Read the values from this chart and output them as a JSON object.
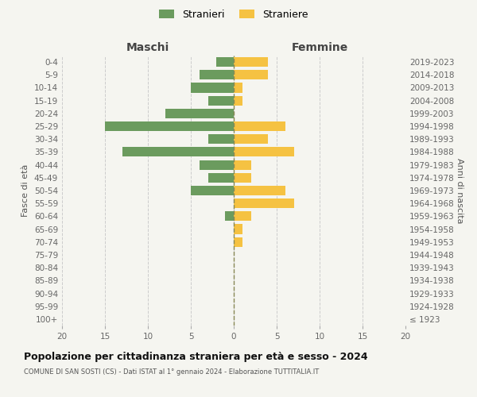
{
  "age_groups": [
    "100+",
    "95-99",
    "90-94",
    "85-89",
    "80-84",
    "75-79",
    "70-74",
    "65-69",
    "60-64",
    "55-59",
    "50-54",
    "45-49",
    "40-44",
    "35-39",
    "30-34",
    "25-29",
    "20-24",
    "15-19",
    "10-14",
    "5-9",
    "0-4"
  ],
  "birth_years": [
    "≤ 1923",
    "1924-1928",
    "1929-1933",
    "1934-1938",
    "1939-1943",
    "1944-1948",
    "1949-1953",
    "1954-1958",
    "1959-1963",
    "1964-1968",
    "1969-1973",
    "1974-1978",
    "1979-1983",
    "1984-1988",
    "1989-1993",
    "1994-1998",
    "1999-2003",
    "2004-2008",
    "2009-2013",
    "2014-2018",
    "2019-2023"
  ],
  "males": [
    0,
    0,
    0,
    0,
    0,
    0,
    0,
    0,
    1,
    0,
    5,
    3,
    4,
    13,
    3,
    15,
    8,
    3,
    5,
    4,
    2
  ],
  "females": [
    0,
    0,
    0,
    0,
    0,
    0,
    1,
    1,
    2,
    7,
    6,
    2,
    2,
    7,
    4,
    6,
    0,
    1,
    1,
    4,
    4
  ],
  "male_color": "#6B9B5E",
  "female_color": "#F5C242",
  "background_color": "#F5F5F0",
  "grid_color": "#CCCCCC",
  "title": "Popolazione per cittadinanza straniera per età e sesso - 2024",
  "subtitle": "COMUNE DI SAN SOSTI (CS) - Dati ISTAT al 1° gennaio 2024 - Elaborazione TUTTITALIA.IT",
  "label_maschi": "Maschi",
  "label_femmine": "Femmine",
  "ylabel_left": "Fasce di età",
  "ylabel_right": "Anni di nascita",
  "legend_male": "Stranieri",
  "legend_female": "Straniere",
  "xlim": 20,
  "bar_height": 0.75
}
